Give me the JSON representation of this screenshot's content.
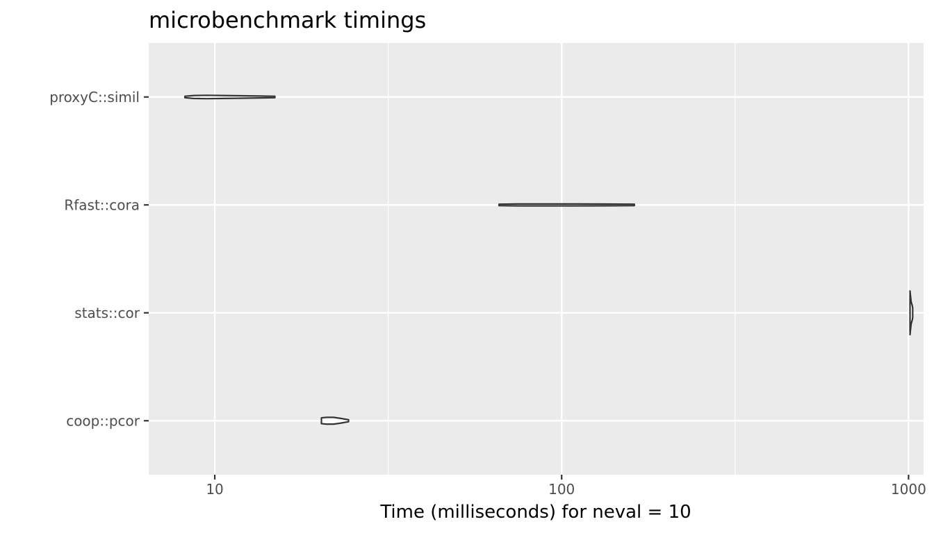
{
  "chart_data": {
    "type": "violin",
    "orientation": "horizontal",
    "title": "microbenchmark timings",
    "xlabel": "Time (milliseconds) for neval = 10",
    "ylabel": "",
    "x_scale": "log10",
    "xlim": [
      6.45,
      1105
    ],
    "x_ticks": [
      10,
      100,
      1000
    ],
    "x_tick_labels": [
      "10",
      "100",
      "1000"
    ],
    "categories": [
      "proxyC::simil",
      "Rfast::cora",
      "stats::cor",
      "coop::pcor"
    ],
    "grid": true,
    "legend": "none",
    "series": [
      {
        "category": "proxyC::simil",
        "min": 8.2,
        "max": 14.9,
        "median": 10.0,
        "profile": [
          [
            8.2,
            0.015
          ],
          [
            8.7,
            0.03
          ],
          [
            9.5,
            0.035
          ],
          [
            10.5,
            0.03
          ],
          [
            12,
            0.025
          ],
          [
            13.5,
            0.02
          ],
          [
            14.9,
            0.015
          ]
        ]
      },
      {
        "category": "Rfast::cora",
        "min": 66,
        "max": 162,
        "median": 100,
        "profile": [
          [
            66,
            0.015
          ],
          [
            75,
            0.02
          ],
          [
            90,
            0.02
          ],
          [
            110,
            0.02
          ],
          [
            135,
            0.018
          ],
          [
            162,
            0.015
          ]
        ]
      },
      {
        "category": "stats::cor",
        "min": 1010,
        "max": 1028,
        "median": 1020,
        "profile": [
          [
            1010,
            0.45
          ],
          [
            1012,
            0.38
          ],
          [
            1018,
            0.22
          ],
          [
            1025,
            0.15
          ],
          [
            1028,
            0.1
          ]
        ]
      },
      {
        "category": "coop::pcor",
        "min": 20.3,
        "max": 24.3,
        "median": 22.0,
        "profile": [
          [
            20.3,
            0.06
          ],
          [
            21.0,
            0.07
          ],
          [
            22.0,
            0.07
          ],
          [
            23.0,
            0.05
          ],
          [
            24.3,
            0.02
          ]
        ]
      }
    ],
    "colors": {
      "panel": "#ebebeb",
      "grid": "#ffffff",
      "violin_stroke": "#333333",
      "violin_fill": "#ffffff",
      "tick_text": "#4d4d4d"
    }
  }
}
